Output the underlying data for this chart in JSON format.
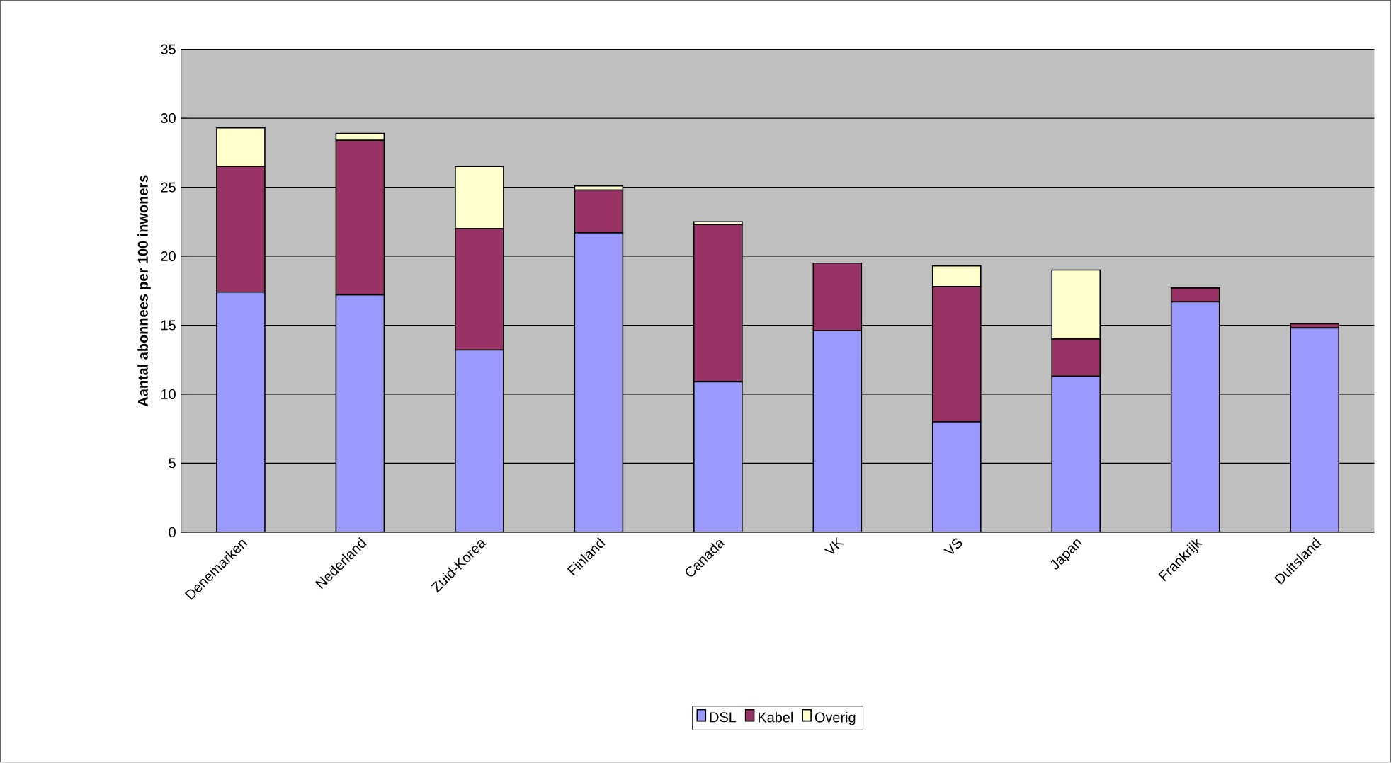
{
  "chart_data": {
    "type": "bar",
    "stacked": true,
    "ylabel": "Aantal abonnees per 100 inwoners",
    "categories": [
      "Denemarken",
      "Nederland",
      "Zuid-Korea",
      "Finland",
      "Canada",
      "VK",
      "VS",
      "Japan",
      "Frankrijk",
      "Duitsland"
    ],
    "series": [
      {
        "name": "DSL",
        "color": "#9999ff",
        "values": [
          17.4,
          17.2,
          13.2,
          21.7,
          10.9,
          14.6,
          8.0,
          11.3,
          16.7,
          14.8
        ]
      },
      {
        "name": "Kabel",
        "color": "#993366",
        "values": [
          9.1,
          11.2,
          8.8,
          3.1,
          11.4,
          4.9,
          9.8,
          2.7,
          1.0,
          0.3
        ]
      },
      {
        "name": "Overig",
        "color": "#ffffcc",
        "values": [
          2.8,
          0.5,
          4.5,
          0.3,
          0.2,
          0,
          1.5,
          5.0,
          0,
          0
        ]
      }
    ],
    "ylim": [
      0,
      35
    ],
    "yticks": [
      0,
      5,
      10,
      15,
      20,
      25,
      30,
      35
    ],
    "grid": "y",
    "legend": "bottom"
  }
}
